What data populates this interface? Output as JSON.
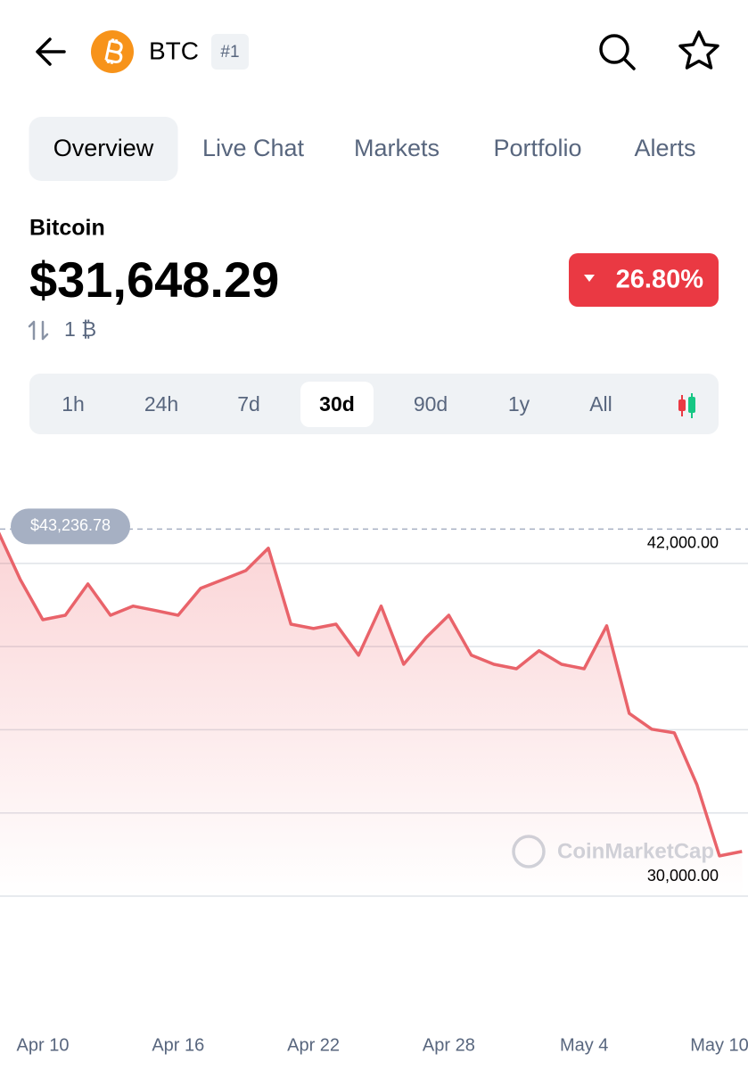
{
  "header": {
    "symbol": "BTC",
    "rank": "#1"
  },
  "tabs": {
    "items": [
      "Overview",
      "Live Chat",
      "Markets",
      "Portfolio",
      "Alerts"
    ],
    "active": 0
  },
  "coin": {
    "name": "Bitcoin",
    "price": "$31,648.29",
    "change": "26.80%",
    "amount": "1 ₿"
  },
  "time_ranges": {
    "items": [
      "1h",
      "24h",
      "7d",
      "30d",
      "90d",
      "1y",
      "All"
    ],
    "active": 3
  },
  "chart_data": {
    "type": "line",
    "categories": [
      null,
      null,
      "Apr 10",
      null,
      null,
      null,
      null,
      null,
      "Apr 16",
      null,
      null,
      null,
      null,
      null,
      "Apr 22",
      null,
      null,
      null,
      null,
      null,
      "Apr 28",
      null,
      null,
      null,
      null,
      null,
      "May 4",
      null,
      null,
      null,
      null,
      null,
      "May 10",
      null
    ],
    "series": [
      {
        "color": "#e9636a",
        "values": [
          43190,
          41420,
          39970,
          40130,
          41260,
          40130,
          40460,
          40300,
          40130,
          41100,
          41420,
          41740,
          42550,
          39810,
          39650,
          39810,
          38690,
          40460,
          38360,
          39330,
          40130,
          38690,
          38360,
          38200,
          38850,
          38360,
          38200,
          39750,
          36590,
          36020,
          35890,
          34020,
          31450,
          31610
        ]
      }
    ],
    "ylim": [
      30000,
      43700
    ],
    "yticks": [
      {
        "value": 42000,
        "label": "42,000.00"
      },
      {
        "value": 39000
      },
      {
        "value": 36000
      },
      {
        "value": 33000
      },
      {
        "value": 30000,
        "label": "30,000.00"
      }
    ],
    "grid": true,
    "price_marker": {
      "value": 43236.78,
      "label": "$43,236.78"
    },
    "watermark": "CoinMarketCap"
  }
}
